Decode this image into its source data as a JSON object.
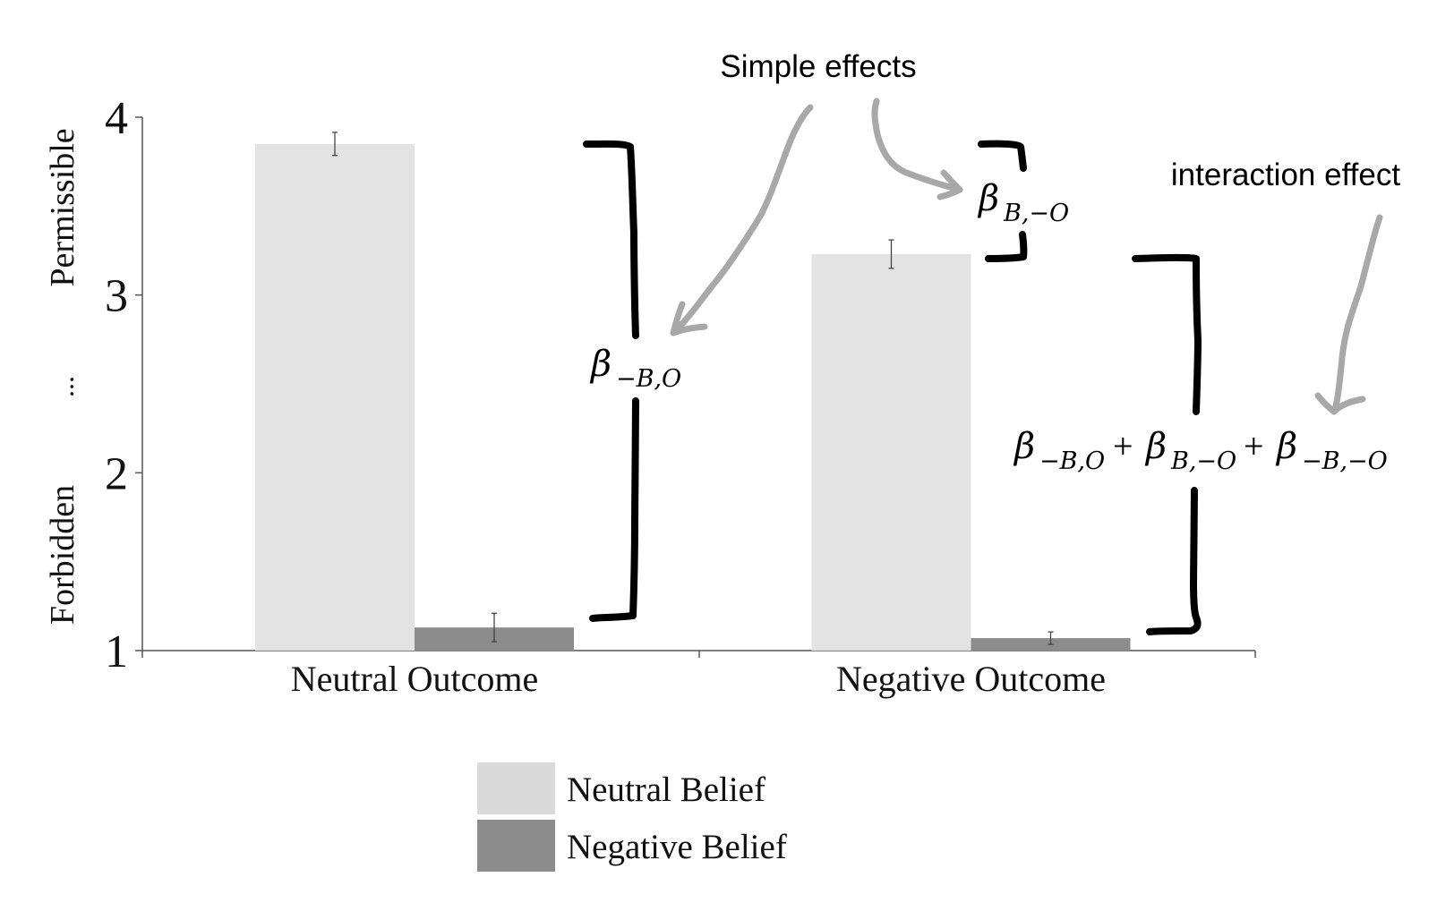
{
  "chart_data": {
    "type": "bar",
    "categories": [
      "Neutral Outcome",
      "Negative Outcome"
    ],
    "series": [
      {
        "name": "Neutral Belief",
        "color": "#e3e3e3",
        "values": [
          3.85,
          3.23
        ],
        "error": [
          0.065,
          0.08
        ]
      },
      {
        "name": "Negative Belief",
        "color": "#8c8c8c",
        "values": [
          1.13,
          1.07
        ],
        "error": [
          0.08,
          0.035
        ]
      }
    ],
    "ylim": [
      1,
      4
    ],
    "yticks": [
      "1",
      "2",
      "3",
      "4"
    ],
    "ylabel_top": "Permissible",
    "ylabel_middle": "...",
    "ylabel_bottom": "Forbidden",
    "xlabel": "",
    "grid": false,
    "legend_position": "bottom-center"
  },
  "annotations": {
    "simple_effects": "Simple effects",
    "interaction_effect": "interaction effect",
    "beta_neg_b_o": {
      "symbol": "β",
      "subscript": "−B,O"
    },
    "beta_b_neg_o": {
      "symbol": "β",
      "subscript": "B,−O"
    },
    "interaction_sum": [
      {
        "symbol": "β",
        "subscript": "−B,O"
      },
      {
        "symbol": "β",
        "subscript": "B,−O"
      },
      {
        "symbol": "β",
        "subscript": "−B,−O"
      }
    ],
    "plus_sign": "+"
  },
  "colors": {
    "axis": "#555555",
    "bracket": "#000000",
    "arrow": "#a8a8a8"
  }
}
